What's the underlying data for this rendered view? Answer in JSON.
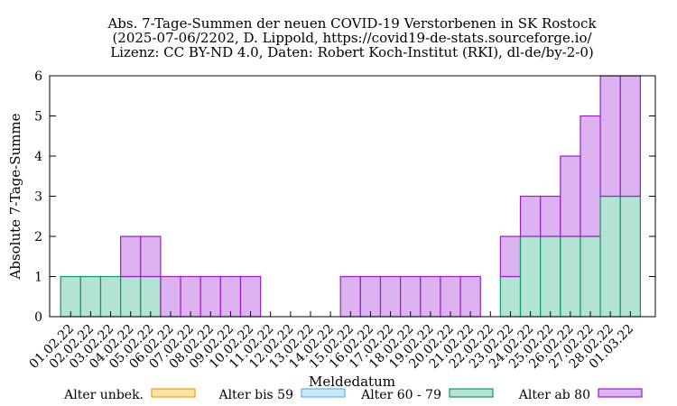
{
  "chart_data": {
    "type": "bar",
    "stacked": true,
    "title": [
      "Abs. 7-Tage-Summen der neuen COVID-19 Verstorbenen in SK Rostock",
      "(2025-07-06/2202, D. Lippold, https://covid19-de-stats.sourceforge.io/",
      "Lizenz: CC BY-ND 4.0, Daten: Robert Koch-Institut (RKI), dl-de/by-2-0)"
    ],
    "xlabel": "Meldedatum",
    "ylabel": "Absolute 7-Tage-Summe",
    "ylim": [
      0,
      6
    ],
    "yticks": [
      0,
      1,
      2,
      3,
      4,
      5,
      6
    ],
    "grid": false,
    "legend_position": "bottom",
    "categories": [
      "01.02.22",
      "02.02.22",
      "03.02.22",
      "04.02.22",
      "05.02.22",
      "06.02.22",
      "07.02.22",
      "08.02.22",
      "09.02.22",
      "10.02.22",
      "11.02.22",
      "12.02.22",
      "13.02.22",
      "14.02.22",
      "15.02.22",
      "16.02.22",
      "17.02.22",
      "18.02.22",
      "19.02.22",
      "20.02.22",
      "21.02.22",
      "22.02.22",
      "23.02.22",
      "24.02.22",
      "25.02.22",
      "26.02.22",
      "27.02.22",
      "28.02.22",
      "01.03.22"
    ],
    "series": [
      {
        "name": "Alter unbek.",
        "fill": "#fde2a4",
        "stroke": "#e3a01c",
        "values": [
          0,
          0,
          0,
          0,
          0,
          0,
          0,
          0,
          0,
          0,
          0,
          0,
          0,
          0,
          0,
          0,
          0,
          0,
          0,
          0,
          0,
          0,
          0,
          0,
          0,
          0,
          0,
          0,
          0
        ]
      },
      {
        "name": "Alter bis 59",
        "fill": "#c8e8f8",
        "stroke": "#62b3e0",
        "values": [
          0,
          0,
          0,
          0,
          0,
          0,
          0,
          0,
          0,
          0,
          0,
          0,
          0,
          0,
          0,
          0,
          0,
          0,
          0,
          0,
          0,
          0,
          0,
          0,
          0,
          0,
          0,
          0,
          0
        ]
      },
      {
        "name": "Alter 60 - 79",
        "fill": "#b3e3d3",
        "stroke": "#12956b",
        "values": [
          1,
          1,
          1,
          1,
          1,
          0,
          0,
          0,
          0,
          0,
          0,
          0,
          0,
          0,
          0,
          0,
          0,
          0,
          0,
          0,
          0,
          0,
          1,
          2,
          2,
          2,
          2,
          3,
          3
        ]
      },
      {
        "name": "Alter ab 80",
        "fill": "#dcb2f0",
        "stroke": "#9a1ec4",
        "values": [
          0,
          0,
          0,
          1,
          1,
          1,
          1,
          1,
          1,
          1,
          0,
          0,
          0,
          0,
          1,
          1,
          1,
          1,
          1,
          1,
          1,
          0,
          1,
          1,
          1,
          2,
          3,
          3,
          3
        ]
      }
    ]
  }
}
